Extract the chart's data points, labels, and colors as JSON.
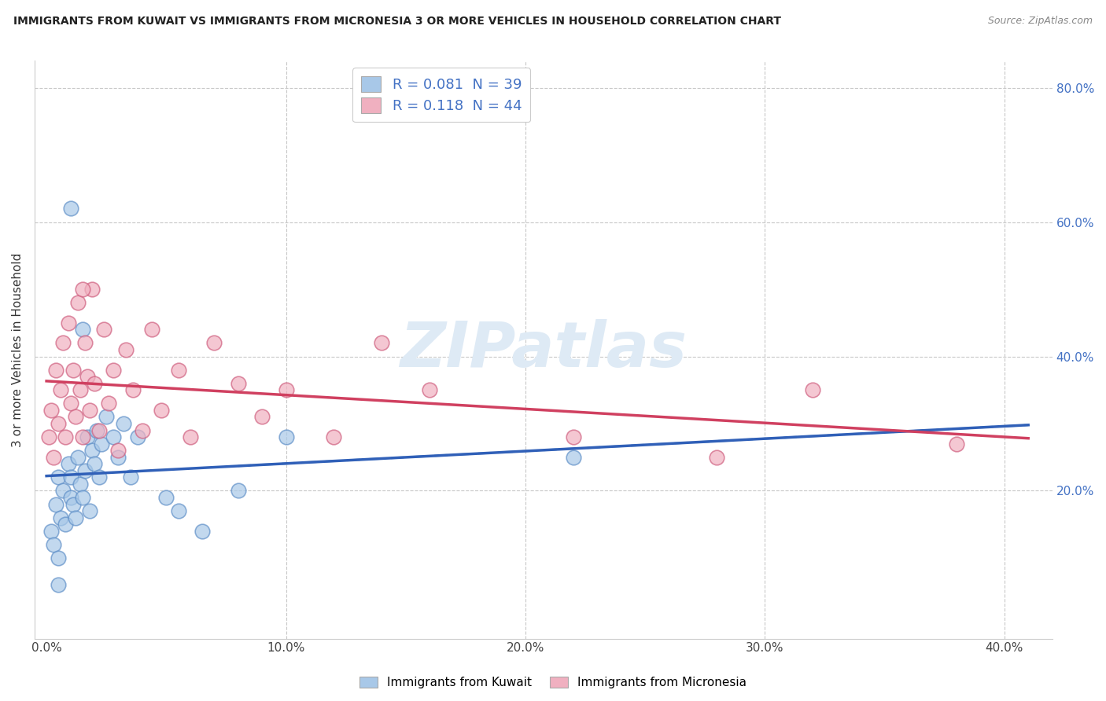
{
  "title": "IMMIGRANTS FROM KUWAIT VS IMMIGRANTS FROM MICRONESIA 3 OR MORE VEHICLES IN HOUSEHOLD CORRELATION CHART",
  "source": "Source: ZipAtlas.com",
  "ylabel": "3 or more Vehicles in Household",
  "x_ticks": [
    "0.0%",
    "10.0%",
    "20.0%",
    "30.0%",
    "40.0%"
  ],
  "x_tick_vals": [
    0.0,
    0.1,
    0.2,
    0.3,
    0.4
  ],
  "y_ticks_right": [
    "20.0%",
    "40.0%",
    "60.0%",
    "80.0%"
  ],
  "y_tick_right_vals": [
    0.2,
    0.4,
    0.6,
    0.8
  ],
  "xlim": [
    -0.005,
    0.42
  ],
  "ylim": [
    -0.02,
    0.84
  ],
  "legend1_label": "R = 0.081  N = 39",
  "legend2_label": "R = 0.118  N = 44",
  "series1_color": "#a8c8e8",
  "series2_color": "#f0b0c0",
  "series1_edge": "#6090c8",
  "series2_edge": "#d06080",
  "line1_color": "#3060b8",
  "line2_color": "#d04060",
  "watermark_color": "#deeaf5",
  "legend_label1": "Immigrants from Kuwait",
  "legend_label2": "Immigrants from Micronesia",
  "kuwait_x": [
    0.002,
    0.003,
    0.004,
    0.005,
    0.005,
    0.006,
    0.007,
    0.008,
    0.009,
    0.01,
    0.01,
    0.011,
    0.012,
    0.013,
    0.014,
    0.015,
    0.016,
    0.017,
    0.018,
    0.019,
    0.02,
    0.021,
    0.022,
    0.023,
    0.025,
    0.028,
    0.03,
    0.032,
    0.035,
    0.038,
    0.05,
    0.055,
    0.065,
    0.08,
    0.1,
    0.22,
    0.01,
    0.015,
    0.005
  ],
  "kuwait_y": [
    0.14,
    0.12,
    0.18,
    0.1,
    0.22,
    0.16,
    0.2,
    0.15,
    0.24,
    0.19,
    0.22,
    0.18,
    0.16,
    0.25,
    0.21,
    0.19,
    0.23,
    0.28,
    0.17,
    0.26,
    0.24,
    0.29,
    0.22,
    0.27,
    0.31,
    0.28,
    0.25,
    0.3,
    0.22,
    0.28,
    0.19,
    0.17,
    0.14,
    0.2,
    0.28,
    0.25,
    0.62,
    0.44,
    0.06
  ],
  "micronesia_x": [
    0.001,
    0.002,
    0.003,
    0.004,
    0.005,
    0.006,
    0.007,
    0.008,
    0.009,
    0.01,
    0.011,
    0.012,
    0.013,
    0.014,
    0.015,
    0.016,
    0.017,
    0.018,
    0.019,
    0.02,
    0.022,
    0.024,
    0.026,
    0.028,
    0.03,
    0.033,
    0.036,
    0.04,
    0.044,
    0.048,
    0.055,
    0.06,
    0.07,
    0.08,
    0.09,
    0.1,
    0.12,
    0.14,
    0.16,
    0.22,
    0.28,
    0.32,
    0.38,
    0.015
  ],
  "micronesia_y": [
    0.28,
    0.32,
    0.25,
    0.38,
    0.3,
    0.35,
    0.42,
    0.28,
    0.45,
    0.33,
    0.38,
    0.31,
    0.48,
    0.35,
    0.28,
    0.42,
    0.37,
    0.32,
    0.5,
    0.36,
    0.29,
    0.44,
    0.33,
    0.38,
    0.26,
    0.41,
    0.35,
    0.29,
    0.44,
    0.32,
    0.38,
    0.28,
    0.42,
    0.36,
    0.31,
    0.35,
    0.28,
    0.42,
    0.35,
    0.28,
    0.25,
    0.35,
    0.27,
    0.5
  ]
}
